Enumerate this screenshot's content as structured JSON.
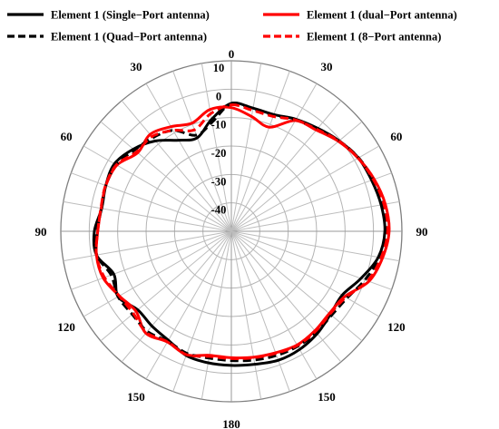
{
  "chart_data": {
    "type": "polar-line",
    "angle_labels": [
      "0",
      "30",
      "60",
      "90",
      "120",
      "150",
      "180",
      "150",
      "120",
      "90",
      "60",
      "30"
    ],
    "radial_ticks": [
      10,
      0,
      -10,
      -20,
      -30,
      -40
    ],
    "r_range": [
      -50,
      10
    ],
    "angle_step_deg": 10,
    "series": [
      {
        "name": "Element  1 (Single−Port antenna)",
        "color": "#000000",
        "dash": "solid",
        "gain_db": [
          -5,
          -6,
          -6.3,
          -4.5,
          -2.7,
          -0.5,
          1.6,
          2.5,
          3.5,
          4,
          2.5,
          -1.5,
          -5,
          -4.5,
          -3,
          -2,
          -1.7,
          -2.5,
          -2.8,
          -3,
          -3.5,
          -5.7,
          -6.5,
          -7,
          -4,
          -6,
          -1.8,
          -1.8,
          -3.7,
          -3,
          -2.5,
          -5,
          -8.5,
          -13,
          -15,
          -10
        ]
      },
      {
        "name": "Element  1 (dual−Port antenna)",
        "color": "#ff0000",
        "dash": "solid",
        "gain_db": [
          -6.5,
          -9,
          -11,
          -5,
          -3.5,
          -0.8,
          1.5,
          3.5,
          5,
          5.5,
          4,
          1.5,
          -4,
          -5,
          -4.3,
          -3.8,
          -4.5,
          -5,
          -5.5,
          -5.7,
          -3.8,
          -5,
          -3.2,
          -6.2,
          -4.5,
          -2,
          -1.8,
          -3,
          -3.5,
          -3,
          -3.5,
          -7,
          -5.5,
          -7.5,
          -9.5,
          -6.5
        ]
      },
      {
        "name": "Element  1 (Quad−Port antenna)",
        "color": "#000000",
        "dash": "dashed",
        "gain_db": [
          -5,
          -6.3,
          -6.5,
          -4.8,
          -2.8,
          -0.5,
          1.7,
          3,
          4,
          4.5,
          3,
          0,
          -3,
          -4,
          -3.5,
          -3.3,
          -3.5,
          -4,
          -4.5,
          -4.7,
          -4.3,
          -5.3,
          -4,
          -4.5,
          -4,
          -5,
          -1.9,
          -2.8,
          -3.6,
          -3,
          -3.2,
          -5.5,
          -7,
          -9,
          -14,
          -11
        ]
      },
      {
        "name": "Element  1 (8−Port antenna)",
        "color": "#ff0000",
        "dash": "dashed",
        "gain_db": [
          -5.5,
          -6.8,
          -7,
          -4.8,
          -3.2,
          -0.6,
          1.5,
          3.2,
          4.5,
          5,
          3.5,
          1,
          -3.5,
          -4.7,
          -4,
          -3.6,
          -4.3,
          -4.8,
          -5.2,
          -5.3,
          -3.8,
          -5.1,
          -3.5,
          -5,
          -4.5,
          -2.5,
          -1.8,
          -3,
          -3.4,
          -2.9,
          -3.3,
          -6.5,
          -6.5,
          -9,
          -12,
          -8
        ]
      }
    ]
  }
}
